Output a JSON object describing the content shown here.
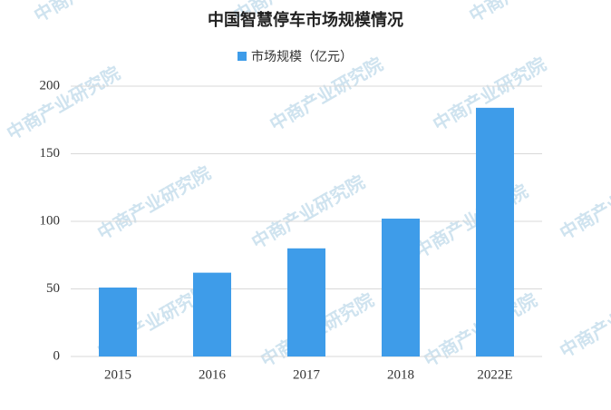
{
  "chart_data": {
    "type": "bar",
    "title": "中国智慧停车市场规模情况",
    "categories": [
      "2015",
      "2016",
      "2017",
      "2018",
      "2022E"
    ],
    "series": [
      {
        "name": "市场规模（亿元）",
        "color": "#3e9ce9",
        "values": [
          51,
          62,
          80,
          102,
          184
        ]
      }
    ],
    "ylim": [
      0,
      200
    ],
    "yticks": [
      0,
      50,
      100,
      150,
      200
    ],
    "grid": true,
    "legend": "top",
    "watermark": "中商产业研究院"
  }
}
